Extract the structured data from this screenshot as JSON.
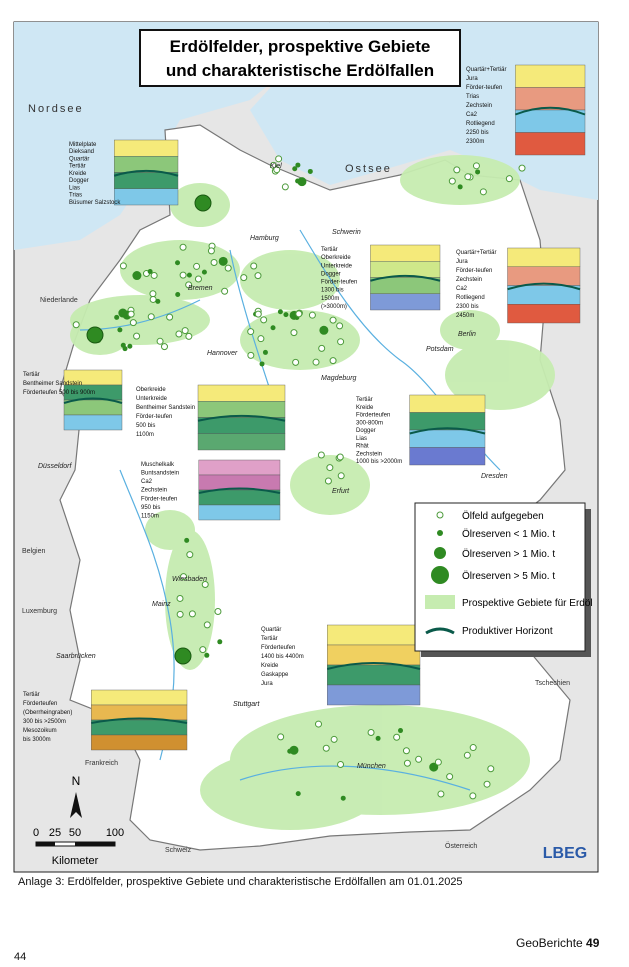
{
  "title": [
    "Erdölfelder, prospektive Gebiete",
    "und charakteristische Erdölfallen"
  ],
  "seas": [
    "Nordsee",
    "Ostsee"
  ],
  "countries": [
    "Niederlande",
    "Belgien",
    "Luxemburg",
    "Frankreich",
    "Schweiz",
    "Österreich",
    "Tschechien"
  ],
  "cities": [
    "Kiel",
    "Hamburg",
    "Schwerin",
    "Bremen",
    "Berlin",
    "Hannover",
    "Potsdam",
    "Magdeburg",
    "Düsseldorf",
    "Erfurt",
    "Dresden",
    "Wiesbaden",
    "Mainz",
    "Saarbrücken",
    "Stuttgart",
    "München"
  ],
  "sections": [
    {
      "labels": [
        "Mittelplate",
        "Dieksand",
        "Quartär",
        "Tertiär",
        "Kreide",
        "Dogger",
        "Lias",
        "Trias",
        "Büsumer Salzstock"
      ]
    },
    {
      "labels": [
        "Quartär+Tertiär",
        "Jura",
        "Förder-teufen",
        "Trias",
        "Zechstein",
        "Ca2",
        "Rotliegend",
        "2250 bis",
        "2300m"
      ]
    },
    {
      "labels": [
        "Tertiär",
        "Oberkreide",
        "Unterkreide",
        "Dogger",
        "Förder-teufen",
        "1300 bis",
        "1500m",
        "(>3000m)"
      ]
    },
    {
      "labels": [
        "Quartär+Tertiär",
        "Jura",
        "Förder-teufen",
        "Zechstein",
        "Ca2",
        "Rotliegend",
        "2300 bis",
        "2450m"
      ]
    },
    {
      "labels": [
        "Tertiär",
        "Bentheimer Sandstein",
        "Förderteufen 500 bis 900m"
      ]
    },
    {
      "labels": [
        "Oberkreide",
        "Unterkreide",
        "Bentheimer Sandstein",
        "Förder-teufen",
        "500 bis",
        "1100m"
      ]
    },
    {
      "labels": [
        "Tertiär",
        "Kreide",
        "Förderteufen",
        "300-800m",
        "Dogger",
        "Lias",
        "Rhät",
        "Zechstein",
        "1000 bis >2000m"
      ]
    },
    {
      "labels": [
        "Muschelkalk",
        "Buntsandstein",
        "Ca2",
        "Zechstein",
        "Förder-teufen",
        "950 bis",
        "1150m"
      ]
    },
    {
      "labels": [
        "Quartär",
        "Tertiär",
        "Förderteufen",
        "1400 bis 4400m",
        "Kreide",
        "Gaskappe",
        "Jura"
      ]
    },
    {
      "labels": [
        "Tertiär",
        "Förderteufen",
        "(Oberrheingraben)",
        "300 bis >2500m",
        "Mesozoikum",
        "bis 3000m"
      ]
    }
  ],
  "legend": [
    "Ölfeld aufgegeben",
    "Ölreserven < 1 Mio. t",
    "Ölreserven > 1 Mio. t",
    "Ölreserven > 5 Mio. t",
    "Prospektive Gebiete für Erdöl",
    "Produktiver Horizont"
  ],
  "north": "N",
  "scale": {
    "ticks": [
      "0",
      "25",
      "50",
      "100"
    ],
    "unit": "Kilometer"
  },
  "logo": "LBEG",
  "caption": "Anlage 3: Erdölfelder, prospektive Gebiete und charakteristische Erdölfallen am 01.01.2025",
  "footer": {
    "journal": "GeoBerichte",
    "number": "49"
  },
  "page": "44"
}
